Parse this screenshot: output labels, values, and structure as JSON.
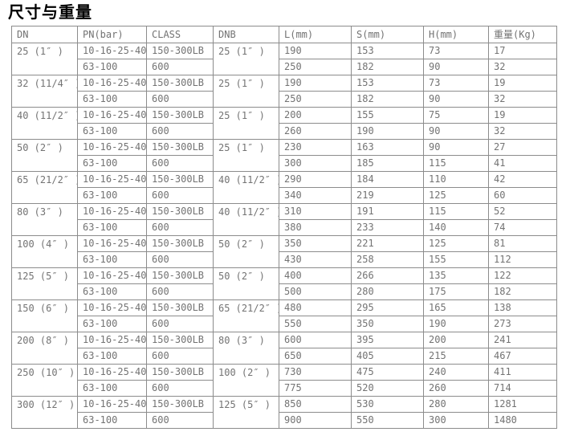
{
  "title": "尺寸与重量",
  "colors": {
    "text": "#737373",
    "border": "#8c8c8c",
    "title": "#000000",
    "background": "#ffffff"
  },
  "table": {
    "headers": [
      "DN",
      "PN(bar)",
      "CLASS",
      "DNB",
      "L(mm)",
      "S(mm)",
      "H(mm)",
      "重量(Kg)"
    ],
    "groups": [
      {
        "dn": "25 (1″ )",
        "dnb": "25 (1″ )",
        "rows": [
          {
            "pn": "10-16-25-40",
            "class": "150-300LB",
            "l": "190",
            "s": "153",
            "h": "73",
            "weight": "17"
          },
          {
            "pn": "63-100",
            "class": "600",
            "l": "250",
            "s": "182",
            "h": "90",
            "weight": "32"
          }
        ]
      },
      {
        "dn": "32 (11/4″ )",
        "dnb": "25 (1″ )",
        "rows": [
          {
            "pn": "10-16-25-40",
            "class": "150-300LB",
            "l": "190",
            "s": "153",
            "h": "73",
            "weight": "19"
          },
          {
            "pn": "63-100",
            "class": "600",
            "l": "250",
            "s": "182",
            "h": "90",
            "weight": "32"
          }
        ]
      },
      {
        "dn": "40 (11/2″ )",
        "dnb": "25 (1″ )",
        "rows": [
          {
            "pn": "10-16-25-40",
            "class": "150-300LB",
            "l": "200",
            "s": "155",
            "h": "75",
            "weight": "19"
          },
          {
            "pn": "63-100",
            "class": "600",
            "l": "260",
            "s": "190",
            "h": "90",
            "weight": "32"
          }
        ]
      },
      {
        "dn": "50 (2″ )",
        "dnb": "25 (1″ )",
        "rows": [
          {
            "pn": "10-16-25-40",
            "class": "150-300LB",
            "l": "230",
            "s": "163",
            "h": "90",
            "weight": "27"
          },
          {
            "pn": "63-100",
            "class": "600",
            "l": "300",
            "s": "185",
            "h": "115",
            "weight": "41"
          }
        ]
      },
      {
        "dn": "65 (21/2″ )",
        "dnb": "40 (11/2″ )",
        "rows": [
          {
            "pn": "10-16-25-40",
            "class": "150-300LB",
            "l": "290",
            "s": "184",
            "h": "110",
            "weight": "42"
          },
          {
            "pn": "63-100",
            "class": "600",
            "l": "340",
            "s": "219",
            "h": "125",
            "weight": "60"
          }
        ]
      },
      {
        "dn": "80 (3″ )",
        "dnb": "40 (11/2″ )",
        "rows": [
          {
            "pn": "10-16-25-40",
            "class": "150-300LB",
            "l": "310",
            "s": "191",
            "h": "115",
            "weight": "52"
          },
          {
            "pn": "63-100",
            "class": "600",
            "l": "380",
            "s": "233",
            "h": "140",
            "weight": "74"
          }
        ]
      },
      {
        "dn": "100 (4″ )",
        "dnb": "50 (2″ )",
        "rows": [
          {
            "pn": "10-16-25-40",
            "class": "150-300LB",
            "l": "350",
            "s": "221",
            "h": "125",
            "weight": "81"
          },
          {
            "pn": "63-100",
            "class": "600",
            "l": "430",
            "s": "258",
            "h": "155",
            "weight": "112"
          }
        ]
      },
      {
        "dn": "125 (5″ )",
        "dnb": "50 (2″ )",
        "rows": [
          {
            "pn": "10-16-25-40",
            "class": "150-300LB",
            "l": "400",
            "s": "266",
            "h": "135",
            "weight": "122"
          },
          {
            "pn": "63-100",
            "class": "600",
            "l": "500",
            "s": "280",
            "h": "175",
            "weight": "182"
          }
        ]
      },
      {
        "dn": "150 (6″ )",
        "dnb": "65 (21/2″ )",
        "rows": [
          {
            "pn": "10-16-25-40",
            "class": "150-300LB",
            "l": "480",
            "s": "295",
            "h": "165",
            "weight": "138"
          },
          {
            "pn": "63-100",
            "class": "600",
            "l": "550",
            "s": "350",
            "h": "190",
            "weight": "273"
          }
        ]
      },
      {
        "dn": "200 (8″ )",
        "dnb": "80 (3″ )",
        "rows": [
          {
            "pn": "10-16-25-40",
            "class": "150-300LB",
            "l": "600",
            "s": "395",
            "h": "200",
            "weight": "241"
          },
          {
            "pn": "63-100",
            "class": "600",
            "l": "650",
            "s": "405",
            "h": "215",
            "weight": "467"
          }
        ]
      },
      {
        "dn": "250 (10″ )",
        "dnb": "100 (2″ )",
        "rows": [
          {
            "pn": "10-16-25-40",
            "class": "150-300LB",
            "l": "730",
            "s": "475",
            "h": "240",
            "weight": "411"
          },
          {
            "pn": "63-100",
            "class": "600",
            "l": "775",
            "s": "520",
            "h": "260",
            "weight": "714"
          }
        ]
      },
      {
        "dn": "300 (12″ )",
        "dnb": "125 (5″ )",
        "rows": [
          {
            "pn": "10-16-25-40",
            "class": "150-300LB",
            "l": "850",
            "s": "530",
            "h": "280",
            "weight": "1281"
          },
          {
            "pn": "63-100",
            "class": "600",
            "l": "900",
            "s": "550",
            "h": "300",
            "weight": "1480"
          }
        ]
      }
    ]
  }
}
